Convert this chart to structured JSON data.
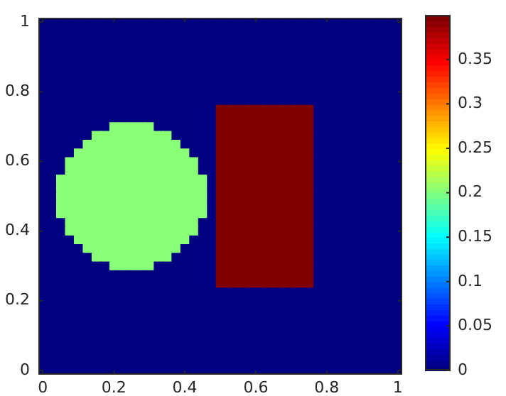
{
  "chart_data": {
    "type": "heatmap",
    "categories": [
      "0",
      null,
      null,
      null,
      null,
      null,
      null,
      null,
      "0.2",
      null,
      null,
      null,
      null,
      null,
      null,
      null,
      "0.4",
      null,
      null,
      null,
      null,
      null,
      null,
      null,
      "0.6",
      null,
      null,
      null,
      null,
      null,
      null,
      null,
      "0.8",
      null,
      null,
      null,
      null,
      null,
      null,
      null,
      "1"
    ],
    "y_categories": [
      "1",
      null,
      null,
      null,
      null,
      null,
      null,
      null,
      "0.8",
      null,
      null,
      null,
      null,
      null,
      null,
      null,
      "0.6",
      null,
      null,
      null,
      null,
      null,
      null,
      null,
      "0.4",
      null,
      null,
      null,
      null,
      null,
      null,
      null,
      "0.2",
      null,
      null,
      null,
      null,
      null,
      null,
      null,
      "0"
    ],
    "clim": [
      0,
      0.4
    ],
    "cticks": [
      0,
      0.05,
      0.1,
      0.15,
      0.2,
      0.25,
      0.3,
      0.35
    ],
    "cells": [
      [
        0,
        0,
        0,
        0,
        0,
        0,
        0,
        0,
        0,
        0,
        0,
        0,
        0,
        0,
        0,
        0,
        0,
        0,
        0,
        0,
        0,
        0,
        0,
        0,
        0,
        0,
        0,
        0,
        0,
        0,
        0,
        0,
        0,
        0,
        0,
        0,
        0,
        0,
        0,
        0,
        0
      ],
      [
        0,
        0,
        0,
        0,
        0,
        0,
        0,
        0,
        0,
        0,
        0,
        0,
        0,
        0,
        0,
        0,
        0,
        0,
        0,
        0,
        0,
        0,
        0,
        0,
        0,
        0,
        0,
        0,
        0,
        0,
        0,
        0,
        0,
        0,
        0,
        0,
        0,
        0,
        0,
        0,
        0
      ],
      [
        0,
        0,
        0,
        0,
        0,
        0,
        0,
        0,
        0,
        0,
        0,
        0,
        0,
        0,
        0,
        0,
        0,
        0,
        0,
        0,
        0,
        0,
        0,
        0,
        0,
        0,
        0,
        0,
        0,
        0,
        0,
        0,
        0,
        0,
        0,
        0,
        0,
        0,
        0,
        0,
        0
      ],
      [
        0,
        0,
        0,
        0,
        0,
        0,
        0,
        0,
        0,
        0,
        0,
        0,
        0,
        0,
        0,
        0,
        0,
        0,
        0,
        0,
        0,
        0,
        0,
        0,
        0,
        0,
        0,
        0,
        0,
        0,
        0,
        0,
        0,
        0,
        0,
        0,
        0,
        0,
        0,
        0,
        0
      ],
      [
        0,
        0,
        0,
        0,
        0,
        0,
        0,
        0,
        0,
        0,
        0,
        0,
        0,
        0,
        0,
        0,
        0,
        0,
        0,
        0,
        0,
        0,
        0,
        0,
        0,
        0,
        0,
        0,
        0,
        0,
        0,
        0,
        0,
        0,
        0,
        0,
        0,
        0,
        0,
        0,
        0
      ],
      [
        0,
        0,
        0,
        0,
        0,
        0,
        0,
        0,
        0,
        0,
        0,
        0,
        0,
        0,
        0,
        0,
        0,
        0,
        0,
        0,
        0,
        0,
        0,
        0,
        0,
        0,
        0,
        0,
        0,
        0,
        0,
        0,
        0,
        0,
        0,
        0,
        0,
        0,
        0,
        0,
        0
      ],
      [
        0,
        0,
        0,
        0,
        0,
        0,
        0,
        0,
        0,
        0,
        0,
        0,
        0,
        0,
        0,
        0,
        0,
        0,
        0,
        0,
        0,
        0,
        0,
        0,
        0,
        0,
        0,
        0,
        0,
        0,
        0,
        0,
        0,
        0,
        0,
        0,
        0,
        0,
        0,
        0,
        0
      ],
      [
        0,
        0,
        0,
        0,
        0,
        0,
        0,
        0,
        0,
        0,
        0,
        0,
        0,
        0,
        0,
        0,
        0,
        0,
        0,
        0,
        0,
        0,
        0,
        0,
        0,
        0,
        0,
        0,
        0,
        0,
        0,
        0,
        0,
        0,
        0,
        0,
        0,
        0,
        0,
        0,
        0
      ],
      [
        0,
        0,
        0,
        0,
        0,
        0,
        0,
        0,
        0,
        0,
        0,
        0,
        0,
        0,
        0,
        0,
        0,
        0,
        0,
        0,
        0,
        0,
        0,
        0,
        0,
        0,
        0,
        0,
        0,
        0,
        0,
        0,
        0,
        0,
        0,
        0,
        0,
        0,
        0,
        0,
        0
      ],
      [
        0,
        0,
        0,
        0,
        0,
        0,
        0,
        0,
        0,
        0,
        0,
        0,
        0,
        0,
        0,
        0,
        0,
        0,
        0,
        0,
        0,
        0,
        0,
        0,
        0,
        0,
        0,
        0,
        0,
        0,
        0,
        0,
        0,
        0,
        0,
        0,
        0,
        0,
        0,
        0,
        0
      ],
      [
        0,
        0,
        0,
        0,
        0,
        0,
        0,
        0,
        0,
        0,
        0,
        0,
        0,
        0,
        0,
        0,
        0,
        0,
        0,
        0,
        0.4,
        0.4,
        0.4,
        0.4,
        0.4,
        0.4,
        0.4,
        0.4,
        0.4,
        0.4,
        0.4,
        0,
        0,
        0,
        0,
        0,
        0,
        0,
        0,
        0,
        0
      ],
      [
        0,
        0,
        0,
        0,
        0,
        0,
        0,
        0,
        0,
        0,
        0,
        0,
        0,
        0,
        0,
        0,
        0,
        0,
        0,
        0,
        0.4,
        0.4,
        0.4,
        0.4,
        0.4,
        0.4,
        0.4,
        0.4,
        0.4,
        0.4,
        0.4,
        0,
        0,
        0,
        0,
        0,
        0,
        0,
        0,
        0,
        0
      ],
      [
        0,
        0,
        0,
        0,
        0,
        0,
        0,
        0,
        0.2,
        0.2,
        0.2,
        0.2,
        0.2,
        0,
        0,
        0,
        0,
        0,
        0,
        0,
        0.4,
        0.4,
        0.4,
        0.4,
        0.4,
        0.4,
        0.4,
        0.4,
        0.4,
        0.4,
        0.4,
        0,
        0,
        0,
        0,
        0,
        0,
        0,
        0,
        0,
        0
      ],
      [
        0,
        0,
        0,
        0,
        0,
        0,
        0.2,
        0.2,
        0.2,
        0.2,
        0.2,
        0.2,
        0.2,
        0.2,
        0.2,
        0,
        0,
        0,
        0,
        0,
        0.4,
        0.4,
        0.4,
        0.4,
        0.4,
        0.4,
        0.4,
        0.4,
        0.4,
        0.4,
        0.4,
        0,
        0,
        0,
        0,
        0,
        0,
        0,
        0,
        0,
        0
      ],
      [
        0,
        0,
        0,
        0,
        0,
        0.2,
        0.2,
        0.2,
        0.2,
        0.2,
        0.2,
        0.2,
        0.2,
        0.2,
        0.2,
        0.2,
        0,
        0,
        0,
        0,
        0.4,
        0.4,
        0.4,
        0.4,
        0.4,
        0.4,
        0.4,
        0.4,
        0.4,
        0.4,
        0.4,
        0,
        0,
        0,
        0,
        0,
        0,
        0,
        0,
        0,
        0
      ],
      [
        0,
        0,
        0,
        0,
        0.2,
        0.2,
        0.2,
        0.2,
        0.2,
        0.2,
        0.2,
        0.2,
        0.2,
        0.2,
        0.2,
        0.2,
        0.2,
        0,
        0,
        0,
        0.4,
        0.4,
        0.4,
        0.4,
        0.4,
        0.4,
        0.4,
        0.4,
        0.4,
        0.4,
        0.4,
        0,
        0,
        0,
        0,
        0,
        0,
        0,
        0,
        0,
        0
      ],
      [
        0,
        0,
        0,
        0.2,
        0.2,
        0.2,
        0.2,
        0.2,
        0.2,
        0.2,
        0.2,
        0.2,
        0.2,
        0.2,
        0.2,
        0.2,
        0.2,
        0.2,
        0,
        0,
        0.4,
        0.4,
        0.4,
        0.4,
        0.4,
        0.4,
        0.4,
        0.4,
        0.4,
        0.4,
        0.4,
        0,
        0,
        0,
        0,
        0,
        0,
        0,
        0,
        0,
        0
      ],
      [
        0,
        0,
        0,
        0.2,
        0.2,
        0.2,
        0.2,
        0.2,
        0.2,
        0.2,
        0.2,
        0.2,
        0.2,
        0.2,
        0.2,
        0.2,
        0.2,
        0.2,
        0,
        0,
        0.4,
        0.4,
        0.4,
        0.4,
        0.4,
        0.4,
        0.4,
        0.4,
        0.4,
        0.4,
        0.4,
        0,
        0,
        0,
        0,
        0,
        0,
        0,
        0,
        0,
        0
      ],
      [
        0,
        0,
        0.2,
        0.2,
        0.2,
        0.2,
        0.2,
        0.2,
        0.2,
        0.2,
        0.2,
        0.2,
        0.2,
        0.2,
        0.2,
        0.2,
        0.2,
        0.2,
        0.2,
        0,
        0.4,
        0.4,
        0.4,
        0.4,
        0.4,
        0.4,
        0.4,
        0.4,
        0.4,
        0.4,
        0.4,
        0,
        0,
        0,
        0,
        0,
        0,
        0,
        0,
        0,
        0
      ],
      [
        0,
        0,
        0.2,
        0.2,
        0.2,
        0.2,
        0.2,
        0.2,
        0.2,
        0.2,
        0.2,
        0.2,
        0.2,
        0.2,
        0.2,
        0.2,
        0.2,
        0.2,
        0.2,
        0,
        0.4,
        0.4,
        0.4,
        0.4,
        0.4,
        0.4,
        0.4,
        0.4,
        0.4,
        0.4,
        0.4,
        0,
        0,
        0,
        0,
        0,
        0,
        0,
        0,
        0,
        0
      ],
      [
        0,
        0,
        0.2,
        0.2,
        0.2,
        0.2,
        0.2,
        0.2,
        0.2,
        0.2,
        0.2,
        0.2,
        0.2,
        0.2,
        0.2,
        0.2,
        0.2,
        0.2,
        0.2,
        0,
        0.4,
        0.4,
        0.4,
        0.4,
        0.4,
        0.4,
        0.4,
        0.4,
        0.4,
        0.4,
        0.4,
        0,
        0,
        0,
        0,
        0,
        0,
        0,
        0,
        0,
        0
      ],
      [
        0,
        0,
        0.2,
        0.2,
        0.2,
        0.2,
        0.2,
        0.2,
        0.2,
        0.2,
        0.2,
        0.2,
        0.2,
        0.2,
        0.2,
        0.2,
        0.2,
        0.2,
        0.2,
        0,
        0.4,
        0.4,
        0.4,
        0.4,
        0.4,
        0.4,
        0.4,
        0.4,
        0.4,
        0.4,
        0.4,
        0,
        0,
        0,
        0,
        0,
        0,
        0,
        0,
        0,
        0
      ],
      [
        0,
        0,
        0.2,
        0.2,
        0.2,
        0.2,
        0.2,
        0.2,
        0.2,
        0.2,
        0.2,
        0.2,
        0.2,
        0.2,
        0.2,
        0.2,
        0.2,
        0.2,
        0.2,
        0,
        0.4,
        0.4,
        0.4,
        0.4,
        0.4,
        0.4,
        0.4,
        0.4,
        0.4,
        0.4,
        0.4,
        0,
        0,
        0,
        0,
        0,
        0,
        0,
        0,
        0,
        0
      ],
      [
        0,
        0,
        0,
        0.2,
        0.2,
        0.2,
        0.2,
        0.2,
        0.2,
        0.2,
        0.2,
        0.2,
        0.2,
        0.2,
        0.2,
        0.2,
        0.2,
        0.2,
        0,
        0,
        0.4,
        0.4,
        0.4,
        0.4,
        0.4,
        0.4,
        0.4,
        0.4,
        0.4,
        0.4,
        0.4,
        0,
        0,
        0,
        0,
        0,
        0,
        0,
        0,
        0,
        0
      ],
      [
        0,
        0,
        0,
        0.2,
        0.2,
        0.2,
        0.2,
        0.2,
        0.2,
        0.2,
        0.2,
        0.2,
        0.2,
        0.2,
        0.2,
        0.2,
        0.2,
        0.2,
        0,
        0,
        0.4,
        0.4,
        0.4,
        0.4,
        0.4,
        0.4,
        0.4,
        0.4,
        0.4,
        0.4,
        0.4,
        0,
        0,
        0,
        0,
        0,
        0,
        0,
        0,
        0,
        0
      ],
      [
        0,
        0,
        0,
        0,
        0.2,
        0.2,
        0.2,
        0.2,
        0.2,
        0.2,
        0.2,
        0.2,
        0.2,
        0.2,
        0.2,
        0.2,
        0.2,
        0,
        0,
        0,
        0.4,
        0.4,
        0.4,
        0.4,
        0.4,
        0.4,
        0.4,
        0.4,
        0.4,
        0.4,
        0.4,
        0,
        0,
        0,
        0,
        0,
        0,
        0,
        0,
        0,
        0
      ],
      [
        0,
        0,
        0,
        0,
        0,
        0.2,
        0.2,
        0.2,
        0.2,
        0.2,
        0.2,
        0.2,
        0.2,
        0.2,
        0.2,
        0.2,
        0,
        0,
        0,
        0,
        0.4,
        0.4,
        0.4,
        0.4,
        0.4,
        0.4,
        0.4,
        0.4,
        0.4,
        0.4,
        0.4,
        0,
        0,
        0,
        0,
        0,
        0,
        0,
        0,
        0,
        0
      ],
      [
        0,
        0,
        0,
        0,
        0,
        0,
        0.2,
        0.2,
        0.2,
        0.2,
        0.2,
        0.2,
        0.2,
        0.2,
        0.2,
        0,
        0,
        0,
        0,
        0,
        0.4,
        0.4,
        0.4,
        0.4,
        0.4,
        0.4,
        0.4,
        0.4,
        0.4,
        0.4,
        0.4,
        0,
        0,
        0,
        0,
        0,
        0,
        0,
        0,
        0,
        0
      ],
      [
        0,
        0,
        0,
        0,
        0,
        0,
        0,
        0,
        0.2,
        0.2,
        0.2,
        0.2,
        0.2,
        0,
        0,
        0,
        0,
        0,
        0,
        0,
        0.4,
        0.4,
        0.4,
        0.4,
        0.4,
        0.4,
        0.4,
        0.4,
        0.4,
        0.4,
        0.4,
        0,
        0,
        0,
        0,
        0,
        0,
        0,
        0,
        0,
        0
      ],
      [
        0,
        0,
        0,
        0,
        0,
        0,
        0,
        0,
        0,
        0,
        0,
        0,
        0,
        0,
        0,
        0,
        0,
        0,
        0,
        0,
        0.4,
        0.4,
        0.4,
        0.4,
        0.4,
        0.4,
        0.4,
        0.4,
        0.4,
        0.4,
        0.4,
        0,
        0,
        0,
        0,
        0,
        0,
        0,
        0,
        0,
        0
      ],
      [
        0,
        0,
        0,
        0,
        0,
        0,
        0,
        0,
        0,
        0,
        0,
        0,
        0,
        0,
        0,
        0,
        0,
        0,
        0,
        0,
        0.4,
        0.4,
        0.4,
        0.4,
        0.4,
        0.4,
        0.4,
        0.4,
        0.4,
        0.4,
        0.4,
        0,
        0,
        0,
        0,
        0,
        0,
        0,
        0,
        0,
        0
      ],
      [
        0,
        0,
        0,
        0,
        0,
        0,
        0,
        0,
        0,
        0,
        0,
        0,
        0,
        0,
        0,
        0,
        0,
        0,
        0,
        0,
        0,
        0,
        0,
        0,
        0,
        0,
        0,
        0,
        0,
        0,
        0,
        0,
        0,
        0,
        0,
        0,
        0,
        0,
        0,
        0,
        0
      ],
      [
        0,
        0,
        0,
        0,
        0,
        0,
        0,
        0,
        0,
        0,
        0,
        0,
        0,
        0,
        0,
        0,
        0,
        0,
        0,
        0,
        0,
        0,
        0,
        0,
        0,
        0,
        0,
        0,
        0,
        0,
        0,
        0,
        0,
        0,
        0,
        0,
        0,
        0,
        0,
        0,
        0
      ],
      [
        0,
        0,
        0,
        0,
        0,
        0,
        0,
        0,
        0,
        0,
        0,
        0,
        0,
        0,
        0,
        0,
        0,
        0,
        0,
        0,
        0,
        0,
        0,
        0,
        0,
        0,
        0,
        0,
        0,
        0,
        0,
        0,
        0,
        0,
        0,
        0,
        0,
        0,
        0,
        0,
        0
      ],
      [
        0,
        0,
        0,
        0,
        0,
        0,
        0,
        0,
        0,
        0,
        0,
        0,
        0,
        0,
        0,
        0,
        0,
        0,
        0,
        0,
        0,
        0,
        0,
        0,
        0,
        0,
        0,
        0,
        0,
        0,
        0,
        0,
        0,
        0,
        0,
        0,
        0,
        0,
        0,
        0,
        0
      ],
      [
        0,
        0,
        0,
        0,
        0,
        0,
        0,
        0,
        0,
        0,
        0,
        0,
        0,
        0,
        0,
        0,
        0,
        0,
        0,
        0,
        0,
        0,
        0,
        0,
        0,
        0,
        0,
        0,
        0,
        0,
        0,
        0,
        0,
        0,
        0,
        0,
        0,
        0,
        0,
        0,
        0
      ],
      [
        0,
        0,
        0,
        0,
        0,
        0,
        0,
        0,
        0,
        0,
        0,
        0,
        0,
        0,
        0,
        0,
        0,
        0,
        0,
        0,
        0,
        0,
        0,
        0,
        0,
        0,
        0,
        0,
        0,
        0,
        0,
        0,
        0,
        0,
        0,
        0,
        0,
        0,
        0,
        0,
        0
      ],
      [
        0,
        0,
        0,
        0,
        0,
        0,
        0,
        0,
        0,
        0,
        0,
        0,
        0,
        0,
        0,
        0,
        0,
        0,
        0,
        0,
        0,
        0,
        0,
        0,
        0,
        0,
        0,
        0,
        0,
        0,
        0,
        0,
        0,
        0,
        0,
        0,
        0,
        0,
        0,
        0,
        0
      ],
      [
        0,
        0,
        0,
        0,
        0,
        0,
        0,
        0,
        0,
        0,
        0,
        0,
        0,
        0,
        0,
        0,
        0,
        0,
        0,
        0,
        0,
        0,
        0,
        0,
        0,
        0,
        0,
        0,
        0,
        0,
        0,
        0,
        0,
        0,
        0,
        0,
        0,
        0,
        0,
        0,
        0
      ],
      [
        0,
        0,
        0,
        0,
        0,
        0,
        0,
        0,
        0,
        0,
        0,
        0,
        0,
        0,
        0,
        0,
        0,
        0,
        0,
        0,
        0,
        0,
        0,
        0,
        0,
        0,
        0,
        0,
        0,
        0,
        0,
        0,
        0,
        0,
        0,
        0,
        0,
        0,
        0,
        0,
        0
      ],
      [
        0,
        0,
        0,
        0,
        0,
        0,
        0,
        0,
        0,
        0,
        0,
        0,
        0,
        0,
        0,
        0,
        0,
        0,
        0,
        0,
        0,
        0,
        0,
        0,
        0,
        0,
        0,
        0,
        0,
        0,
        0,
        0,
        0,
        0,
        0,
        0,
        0,
        0,
        0,
        0,
        0
      ]
    ]
  }
}
